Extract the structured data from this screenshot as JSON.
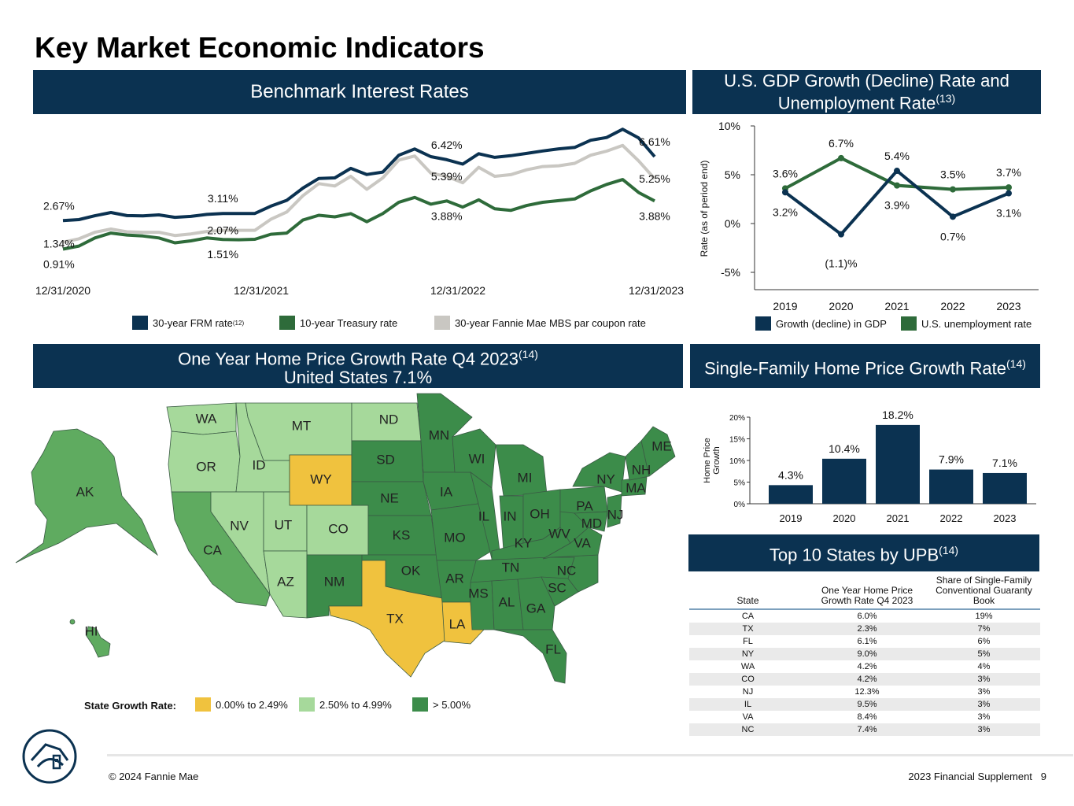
{
  "page": {
    "title": "Key Market Economic Indicators",
    "footer_left": "© 2024 Fannie Mae",
    "footer_right": "2023 Financial Supplement   9"
  },
  "colors": {
    "navy": "#0b3251",
    "green": "#2e6b3a",
    "gray": "#c9c7c2",
    "yellow": "#f0c23e",
    "light_green": "#a6d99b",
    "mid_green": "#5fab60",
    "dark_green": "#3c8c4a"
  },
  "rates_panel": {
    "heading": "Benchmark Interest Rates",
    "legend": {
      "frm": "30-year FRM rate",
      "frm_note": "(12)",
      "treasury": "10-year Treasury rate",
      "mbs": "30-year Fannie Mae MBS par coupon rate"
    }
  },
  "gdp_panel": {
    "heading_line1": "U.S. GDP Growth (Decline) Rate and",
    "heading_line2": "Unemployment Rate",
    "heading_note": "(13)",
    "legend": {
      "gdp": "Growth (decline) in GDP",
      "unemp": "U.S. unemployment rate"
    }
  },
  "map_panel": {
    "heading_line1": "One Year Home Price Growth Rate Q4 2023",
    "heading_note": "(14)",
    "heading_line2": "United States 7.1%",
    "legend": {
      "label": "State Growth Rate:",
      "low": "0.00% to 2.49%",
      "mid": "2.50% to 4.99%",
      "high": "> 5.00%"
    },
    "states": [
      {
        "abbr": "WA",
        "tier": "mid"
      },
      {
        "abbr": "OR",
        "tier": "mid"
      },
      {
        "abbr": "CA",
        "tier": "high"
      },
      {
        "abbr": "AK",
        "tier": "high"
      },
      {
        "abbr": "HI",
        "tier": "high"
      },
      {
        "abbr": "ID",
        "tier": "mid"
      },
      {
        "abbr": "NV",
        "tier": "mid"
      },
      {
        "abbr": "MT",
        "tier": "mid"
      },
      {
        "abbr": "WY",
        "tier": "low"
      },
      {
        "abbr": "UT",
        "tier": "mid"
      },
      {
        "abbr": "CO",
        "tier": "mid"
      },
      {
        "abbr": "AZ",
        "tier": "mid"
      },
      {
        "abbr": "NM",
        "tier": "high"
      },
      {
        "abbr": "ND",
        "tier": "mid"
      },
      {
        "abbr": "SD",
        "tier": "high"
      },
      {
        "abbr": "NE",
        "tier": "high"
      },
      {
        "abbr": "KS",
        "tier": "high"
      },
      {
        "abbr": "OK",
        "tier": "high"
      },
      {
        "abbr": "TX",
        "tier": "low"
      },
      {
        "abbr": "MN",
        "tier": "high"
      },
      {
        "abbr": "IA",
        "tier": "high"
      },
      {
        "abbr": "MO",
        "tier": "high"
      },
      {
        "abbr": "AR",
        "tier": "high"
      },
      {
        "abbr": "LA",
        "tier": "low"
      },
      {
        "abbr": "WI",
        "tier": "high"
      },
      {
        "abbr": "IL",
        "tier": "high"
      },
      {
        "abbr": "MI",
        "tier": "high"
      },
      {
        "abbr": "IN",
        "tier": "high"
      },
      {
        "abbr": "OH",
        "tier": "high"
      },
      {
        "abbr": "KY",
        "tier": "high"
      },
      {
        "abbr": "TN",
        "tier": "high"
      },
      {
        "abbr": "MS",
        "tier": "high"
      },
      {
        "abbr": "AL",
        "tier": "high"
      },
      {
        "abbr": "GA",
        "tier": "high"
      },
      {
        "abbr": "FL",
        "tier": "high"
      },
      {
        "abbr": "SC",
        "tier": "high"
      },
      {
        "abbr": "NC",
        "tier": "high"
      },
      {
        "abbr": "VA",
        "tier": "high"
      },
      {
        "abbr": "WV",
        "tier": "high"
      },
      {
        "abbr": "PA",
        "tier": "high"
      },
      {
        "abbr": "NY",
        "tier": "high"
      },
      {
        "abbr": "MD",
        "tier": "high"
      },
      {
        "abbr": "NJ",
        "tier": "high"
      },
      {
        "abbr": "ME",
        "tier": "high"
      },
      {
        "abbr": "NH",
        "tier": "high"
      },
      {
        "abbr": "MA",
        "tier": "high"
      }
    ]
  },
  "hpg_panel": {
    "heading": "Single-Family Home Price Growth Rate",
    "heading_note": "(14)"
  },
  "upb_panel": {
    "heading": "Top 10 States by UPB",
    "heading_note": "(14)",
    "columns": [
      "State",
      "One Year Home Price Growth Rate Q4 2023",
      "Share of Single-Family Conventional Guaranty Book"
    ],
    "rows": [
      [
        "CA",
        "6.0%",
        "19%"
      ],
      [
        "TX",
        "2.3%",
        "7%"
      ],
      [
        "FL",
        "6.1%",
        "6%"
      ],
      [
        "NY",
        "9.0%",
        "5%"
      ],
      [
        "WA",
        "4.2%",
        "4%"
      ],
      [
        "CO",
        "4.2%",
        "3%"
      ],
      [
        "NJ",
        "12.3%",
        "3%"
      ],
      [
        "IL",
        "9.5%",
        "3%"
      ],
      [
        "VA",
        "8.4%",
        "3%"
      ],
      [
        "NC",
        "7.4%",
        "3%"
      ]
    ]
  },
  "chart_data": [
    {
      "type": "line",
      "title": "Benchmark Interest Rates",
      "x_labels": [
        "12/31/2020",
        "12/31/2021",
        "12/31/2022",
        "12/31/2023"
      ],
      "series": [
        {
          "name": "30-year FRM rate",
          "color": "#0b3251",
          "values": [
            2.67,
            2.73,
            2.97,
            3.17,
            2.98,
            2.96,
            3.02,
            2.87,
            2.93,
            3.05,
            3.11,
            3.11,
            3.11,
            3.56,
            3.92,
            4.67,
            5.27,
            5.3,
            5.89,
            5.51,
            5.66,
            6.7,
            7.08,
            6.61,
            6.42,
            6.15,
            6.79,
            6.57,
            6.67,
            6.81,
            6.96,
            7.09,
            7.18,
            7.62,
            7.79,
            8.3,
            7.76,
            6.61
          ]
        },
        {
          "name": "30-year Fannie Mae MBS par coupon rate",
          "color": "#c9c7c2",
          "values": [
            1.34,
            1.55,
            1.95,
            2.15,
            1.98,
            1.95,
            1.95,
            1.75,
            1.85,
            2.0,
            2.07,
            2.07,
            2.07,
            2.75,
            3.2,
            4.2,
            4.95,
            4.8,
            5.4,
            4.6,
            5.3,
            6.4,
            6.65,
            5.6,
            5.39,
            5.0,
            5.95,
            5.4,
            5.5,
            5.8,
            6.0,
            6.05,
            6.2,
            6.7,
            6.95,
            7.3,
            6.35,
            5.25
          ]
        },
        {
          "name": "10-year Treasury rate",
          "color": "#2e6b3a",
          "values": [
            0.91,
            1.1,
            1.6,
            1.9,
            1.78,
            1.72,
            1.6,
            1.3,
            1.42,
            1.6,
            1.51,
            1.49,
            1.52,
            1.83,
            1.9,
            2.7,
            3.0,
            2.9,
            3.1,
            2.6,
            3.1,
            3.8,
            4.1,
            3.68,
            3.88,
            3.5,
            3.95,
            3.4,
            3.3,
            3.6,
            3.8,
            3.9,
            4.0,
            4.5,
            4.9,
            5.2,
            4.4,
            3.88
          ]
        }
      ],
      "data_labels": [
        {
          "text": "2.67%",
          "series": 0,
          "index": 0,
          "pos": "above"
        },
        {
          "text": "1.34%",
          "series": 1,
          "index": 0,
          "pos": "on"
        },
        {
          "text": "0.91%",
          "series": 2,
          "index": 0,
          "pos": "below"
        },
        {
          "text": "3.11%",
          "series": 0,
          "index": 10,
          "pos": "above"
        },
        {
          "text": "2.07%",
          "series": 1,
          "index": 10,
          "pos": "on"
        },
        {
          "text": "1.51%",
          "series": 2,
          "index": 10,
          "pos": "below"
        },
        {
          "text": "6.42%",
          "series": 0,
          "index": 24,
          "pos": "above"
        },
        {
          "text": "5.39%",
          "series": 1,
          "index": 24,
          "pos": "on"
        },
        {
          "text": "3.88%",
          "series": 2,
          "index": 24,
          "pos": "below"
        },
        {
          "text": "6.61%",
          "series": 0,
          "index": 37,
          "pos": "above"
        },
        {
          "text": "5.25%",
          "series": 1,
          "index": 37,
          "pos": "on"
        },
        {
          "text": "3.88%",
          "series": 2,
          "index": 37,
          "pos": "below"
        }
      ]
    },
    {
      "type": "line",
      "title": "U.S. GDP Growth (Decline) Rate and Unemployment Rate",
      "ylabel": "Rate (as of period end)",
      "categories": [
        "2019",
        "2020",
        "2021",
        "2022",
        "2023"
      ],
      "y_ticks": [
        "10%",
        "5%",
        "0%",
        "-5%"
      ],
      "ylim": [
        -5,
        10
      ],
      "series": [
        {
          "name": "Growth (decline) in GDP",
          "color": "#0b3251",
          "values": [
            3.2,
            -1.1,
            5.4,
            0.7,
            3.1
          ],
          "labels": [
            "3.2%",
            "(1.1)%",
            "5.4%",
            "0.7%",
            "3.1%"
          ],
          "label_pos": [
            "below",
            "below",
            "above",
            "below",
            "below"
          ]
        },
        {
          "name": "U.S. unemployment rate",
          "color": "#2e6b3a",
          "values": [
            3.6,
            6.7,
            3.9,
            3.5,
            3.7
          ],
          "labels": [
            "3.6%",
            "6.7%",
            "3.9%",
            "3.5%",
            "3.7%"
          ],
          "label_pos": [
            "above",
            "above",
            "below",
            "above",
            "above"
          ]
        }
      ]
    },
    {
      "type": "bar",
      "title": "Single-Family Home Price Growth Rate",
      "ylabel": "Home Price Growth",
      "categories": [
        "2019",
        "2020",
        "2021",
        "2022",
        "2023"
      ],
      "values": [
        4.3,
        10.4,
        18.2,
        7.9,
        7.1
      ],
      "labels": [
        "4.3%",
        "10.4%",
        "18.2%",
        "7.9%",
        "7.1%"
      ],
      "y_ticks": [
        "20%",
        "15%",
        "10%",
        "5%",
        "0%"
      ],
      "ylim": [
        0,
        20
      ]
    }
  ]
}
